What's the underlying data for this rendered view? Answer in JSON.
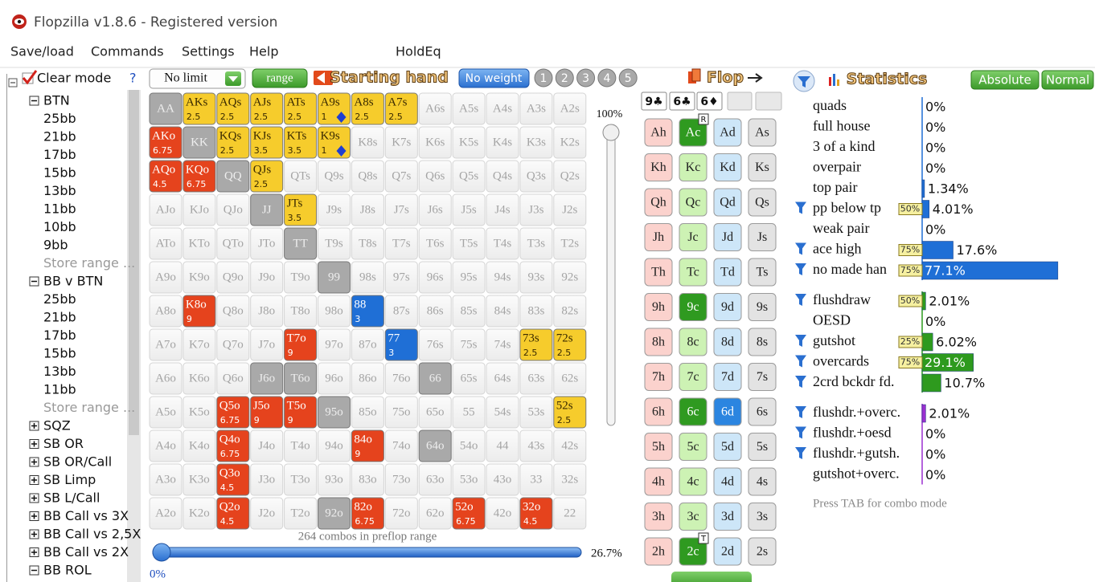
{
  "window": {
    "title": "Flopzilla v1.8.6 - Registered version"
  },
  "menu": [
    "Save/load",
    "Commands",
    "Settings",
    "Help",
    "HoldEq"
  ],
  "sidebar": {
    "mode": "Clear mode",
    "help": "?",
    "tree": [
      {
        "label": "BTN",
        "expanded": true,
        "children": [
          "25bb",
          "21bb",
          "17bb",
          "15bb",
          "13bb",
          "11bb",
          "10bb",
          "9bb",
          {
            "label": "Store range ...",
            "muted": true
          }
        ]
      },
      {
        "label": "BB v BTN",
        "expanded": true,
        "children": [
          "25bb",
          "21bb",
          "17bb",
          "15bb",
          "13bb",
          "11bb",
          {
            "label": "Store range ...",
            "muted": true
          }
        ]
      },
      {
        "label": "SQZ",
        "expanded": false
      },
      {
        "label": "SB OR",
        "expanded": false
      },
      {
        "label": "SB OR/Call",
        "expanded": false
      },
      {
        "label": "SB Limp",
        "expanded": false
      },
      {
        "label": "SB L/Call",
        "expanded": false
      },
      {
        "label": "BB Call vs 3X",
        "expanded": false
      },
      {
        "label": "BB Call vs 2,5X",
        "expanded": false
      },
      {
        "label": "BB Call vs 2X",
        "expanded": false
      },
      {
        "label": "BB ROL",
        "expanded": true
      }
    ]
  },
  "toolbar": {
    "limit": "No limit",
    "range_button": "range",
    "starting_hand": "Starting hand",
    "weight_button": "No weight",
    "weight_slots": [
      1,
      2,
      3,
      4,
      5
    ]
  },
  "hand_grid": {
    "palette": {
      "y": {
        "fill": "#f6cc2c",
        "ink": "#3a2a00"
      },
      "r": {
        "fill": "#e5431d",
        "ink": "#ffffff"
      },
      "g": {
        "fill": "#a9a9a9",
        "ink": "#eeeeee"
      },
      "b": {
        "fill": "#1f6fd6",
        "ink": "#ffffff"
      }
    },
    "rows": [
      [
        {
          "label": "AA",
          "style": "g"
        },
        {
          "label": "AKs",
          "style": "y",
          "weight": 2.5
        },
        {
          "label": "AQs",
          "style": "y",
          "weight": 2.5
        },
        {
          "label": "AJs",
          "style": "y",
          "weight": 2.5
        },
        {
          "label": "ATs",
          "style": "y",
          "weight": 2.5
        },
        {
          "label": "A9s",
          "style": "y",
          "weight": 1,
          "icon": "diamond"
        },
        {
          "label": "A8s",
          "style": "y",
          "weight": 2.5
        },
        {
          "label": "A7s",
          "style": "y",
          "weight": 2.5
        },
        "A6s",
        "A5s",
        "A4s",
        "A3s",
        "A2s"
      ],
      [
        {
          "label": "AKo",
          "style": "r",
          "weight": 6.75
        },
        {
          "label": "KK",
          "style": "g"
        },
        {
          "label": "KQs",
          "style": "y",
          "weight": 2.5
        },
        {
          "label": "KJs",
          "style": "y",
          "weight": 3.5
        },
        {
          "label": "KTs",
          "style": "y",
          "weight": 3.5
        },
        {
          "label": "K9s",
          "style": "y",
          "weight": 1,
          "icon": "diamond"
        },
        "K8s",
        "K7s",
        "K6s",
        "K5s",
        "K4s",
        "K3s",
        "K2s"
      ],
      [
        {
          "label": "AQo",
          "style": "r",
          "weight": 4.5
        },
        {
          "label": "KQo",
          "style": "r",
          "weight": 6.75
        },
        {
          "label": "QQ",
          "style": "g"
        },
        {
          "label": "QJs",
          "style": "y",
          "weight": 2.5
        },
        "QTs",
        "Q9s",
        "Q8s",
        "Q7s",
        "Q6s",
        "Q5s",
        "Q4s",
        "Q3s",
        "Q2s"
      ],
      [
        "AJo",
        "KJo",
        "QJo",
        {
          "label": "JJ",
          "style": "g"
        },
        {
          "label": "JTs",
          "style": "y",
          "weight": 3.5
        },
        "J9s",
        "J8s",
        "J7s",
        "J6s",
        "J5s",
        "J4s",
        "J3s",
        "J2s"
      ],
      [
        "ATo",
        "KTo",
        "QTo",
        "JTo",
        {
          "label": "TT",
          "style": "g"
        },
        "T9s",
        "T8s",
        "T7s",
        "T6s",
        "T5s",
        "T4s",
        "T3s",
        "T2s"
      ],
      [
        "A9o",
        "K9o",
        "Q9o",
        "J9o",
        "T9o",
        {
          "label": "99",
          "style": "g"
        },
        "98s",
        "97s",
        "96s",
        "95s",
        "94s",
        "93s",
        "92s"
      ],
      [
        "A8o",
        {
          "label": "K8o",
          "style": "r",
          "weight": 9
        },
        "Q8o",
        "J8o",
        "T8o",
        "98o",
        {
          "label": "88",
          "style": "b",
          "weight": 3
        },
        "87s",
        "86s",
        "85s",
        "84s",
        "83s",
        "82s"
      ],
      [
        "A7o",
        "K7o",
        "Q7o",
        "J7o",
        {
          "label": "T7o",
          "style": "r",
          "weight": 9
        },
        "97o",
        "87o",
        {
          "label": "77",
          "style": "b",
          "weight": 3
        },
        "76s",
        "75s",
        "74s",
        {
          "label": "73s",
          "style": "y",
          "weight": 2.5
        },
        {
          "label": "72s",
          "style": "y",
          "weight": 2.5
        }
      ],
      [
        "A6o",
        "K6o",
        "Q6o",
        {
          "label": "J6o",
          "style": "g"
        },
        {
          "label": "T6o",
          "style": "g"
        },
        "96o",
        "86o",
        "76o",
        {
          "label": "66",
          "style": "g"
        },
        "65s",
        "64s",
        "63s",
        "62s"
      ],
      [
        "A5o",
        "K5o",
        {
          "label": "Q5o",
          "style": "r",
          "weight": 6.75
        },
        {
          "label": "J5o",
          "style": "r",
          "weight": 9
        },
        {
          "label": "T5o",
          "style": "r",
          "weight": 9
        },
        {
          "label": "95o",
          "style": "g"
        },
        "85o",
        "75o",
        "65o",
        "55",
        "54s",
        "53s",
        {
          "label": "52s",
          "style": "y",
          "weight": 2.5
        }
      ],
      [
        "A4o",
        "K4o",
        {
          "label": "Q4o",
          "style": "r",
          "weight": 6.75
        },
        "J4o",
        "T4o",
        "94o",
        {
          "label": "84o",
          "style": "r",
          "weight": 9
        },
        "74o",
        {
          "label": "64o",
          "style": "g"
        },
        "54o",
        "44",
        "43s",
        "42s"
      ],
      [
        "A3o",
        "K3o",
        {
          "label": "Q3o",
          "style": "r",
          "weight": 4.5
        },
        "J3o",
        "T3o",
        "93o",
        "83o",
        "73o",
        "63o",
        "53o",
        "43o",
        "33",
        "32s"
      ],
      [
        "A2o",
        "K2o",
        {
          "label": "Q2o",
          "style": "r",
          "weight": 4.5
        },
        "J2o",
        "T2o",
        {
          "label": "92o",
          "style": "g"
        },
        {
          "label": "82o",
          "style": "r",
          "weight": 6.75
        },
        "72o",
        "62o",
        {
          "label": "52o",
          "style": "r",
          "weight": 6.75
        },
        "42o",
        {
          "label": "32o",
          "style": "r",
          "weight": 4.5
        },
        "22"
      ]
    ],
    "slider_top": "100%",
    "combos": "264 combos in preflop range",
    "range_percent": "26.7%",
    "range_min": "0%"
  },
  "flop": {
    "title": "Flop",
    "board": [
      "9♣",
      "6♣",
      "6♦"
    ],
    "palette": {
      "h": {
        "fill": "#fbd2cd",
        "ink": "#222222"
      },
      "c": {
        "fill": "#cdf2b4",
        "ink": "#222222"
      },
      "d": {
        "fill": "#cde6f8",
        "ink": "#222222"
      },
      "s": {
        "fill": "#e3e3e3",
        "ink": "#222222"
      },
      "sel": {
        "fill": "#2f9a20",
        "ink": "#ffffff"
      },
      "seld": {
        "fill": "#2b85e0",
        "ink": "#ffffff"
      }
    },
    "suits": [
      "h",
      "c",
      "d",
      "s"
    ],
    "rows": [
      [
        "Ah",
        {
          "label": "Ac",
          "style": "sel",
          "badge": "R"
        },
        "Ad",
        "As"
      ],
      [
        "Kh",
        "Kc",
        "Kd",
        "Ks"
      ],
      [
        "Qh",
        "Qc",
        "Qd",
        "Qs"
      ],
      [
        "Jh",
        "Jc",
        "Jd",
        "Js"
      ],
      [
        "Th",
        "Tc",
        "Td",
        "Ts"
      ],
      [
        "9h",
        {
          "label": "9c",
          "style": "sel"
        },
        "9d",
        "9s"
      ],
      [
        "8h",
        "8c",
        "8d",
        "8s"
      ],
      [
        "7h",
        "7c",
        "7d",
        "7s"
      ],
      [
        "6h",
        {
          "label": "6c",
          "style": "sel"
        },
        {
          "label": "6d",
          "style": "seld"
        },
        "6s"
      ],
      [
        "5h",
        "5c",
        "5d",
        "5s"
      ],
      [
        "4h",
        "4c",
        "4d",
        "4s"
      ],
      [
        "3h",
        "3c",
        "3d",
        "3s"
      ],
      [
        "2h",
        {
          "label": "2c",
          "style": "sel",
          "badge": "T"
        },
        "2d",
        "2s"
      ]
    ]
  },
  "statistics": {
    "title": "Statistics",
    "buttons": [
      "Absolute",
      "Normal"
    ],
    "xlim": [
      0,
      100
    ],
    "groups": [
      {
        "color": "#1f6fd6",
        "rows": [
          {
            "name": "quads",
            "value": 0,
            "value_label": "0%"
          },
          {
            "name": "full house",
            "value": 0,
            "value_label": "0%"
          },
          {
            "name": "3 of a kind",
            "value": 0,
            "value_label": "0%"
          },
          {
            "name": "overpair",
            "value": 0,
            "value_label": "0%"
          },
          {
            "name": "top pair",
            "value": 1.34,
            "value_label": "1.34%"
          },
          {
            "name": "pp below tp",
            "filter": true,
            "weight_label": "50%",
            "value": 4.01,
            "value_label": "4.01%"
          },
          {
            "name": "weak pair",
            "value": 0,
            "value_label": "0%"
          },
          {
            "name": "ace high",
            "filter": true,
            "weight_label": "75%",
            "value": 17.6,
            "value_label": "17.6%"
          },
          {
            "name": "no made han",
            "filter": true,
            "weight_label": "75%",
            "value": 77.1,
            "value_label": "77.1%"
          }
        ]
      },
      {
        "color": "#2e9a1e",
        "rows": [
          {
            "name": "flushdraw",
            "filter": true,
            "weight_label": "50%",
            "value": 2.01,
            "value_label": "2.01%"
          },
          {
            "name": "OESD",
            "value": 0,
            "value_label": "0%"
          },
          {
            "name": "gutshot",
            "filter": true,
            "weight_label": "25%",
            "value": 6.02,
            "value_label": "6.02%"
          },
          {
            "name": "overcards",
            "filter": true,
            "weight_label": "75%",
            "value": 29.1,
            "value_label": "29.1%"
          },
          {
            "name": "2crd bckdr fd.",
            "filter": true,
            "value": 10.7,
            "value_label": "10.7%"
          }
        ]
      },
      {
        "color": "#9b2fd0",
        "rows": [
          {
            "name": "flushdr.+overc.",
            "filter": true,
            "value": 2.01,
            "value_label": "2.01%"
          },
          {
            "name": "flushdr.+oesd",
            "filter": true,
            "value": 0,
            "value_label": "0%"
          },
          {
            "name": "flushdr.+gutsh.",
            "filter": true,
            "value": 0,
            "value_label": "0%"
          },
          {
            "name": "gutshot+overc.",
            "value": 0,
            "value_label": "0%"
          }
        ]
      }
    ],
    "hint": "Press TAB for combo mode"
  }
}
